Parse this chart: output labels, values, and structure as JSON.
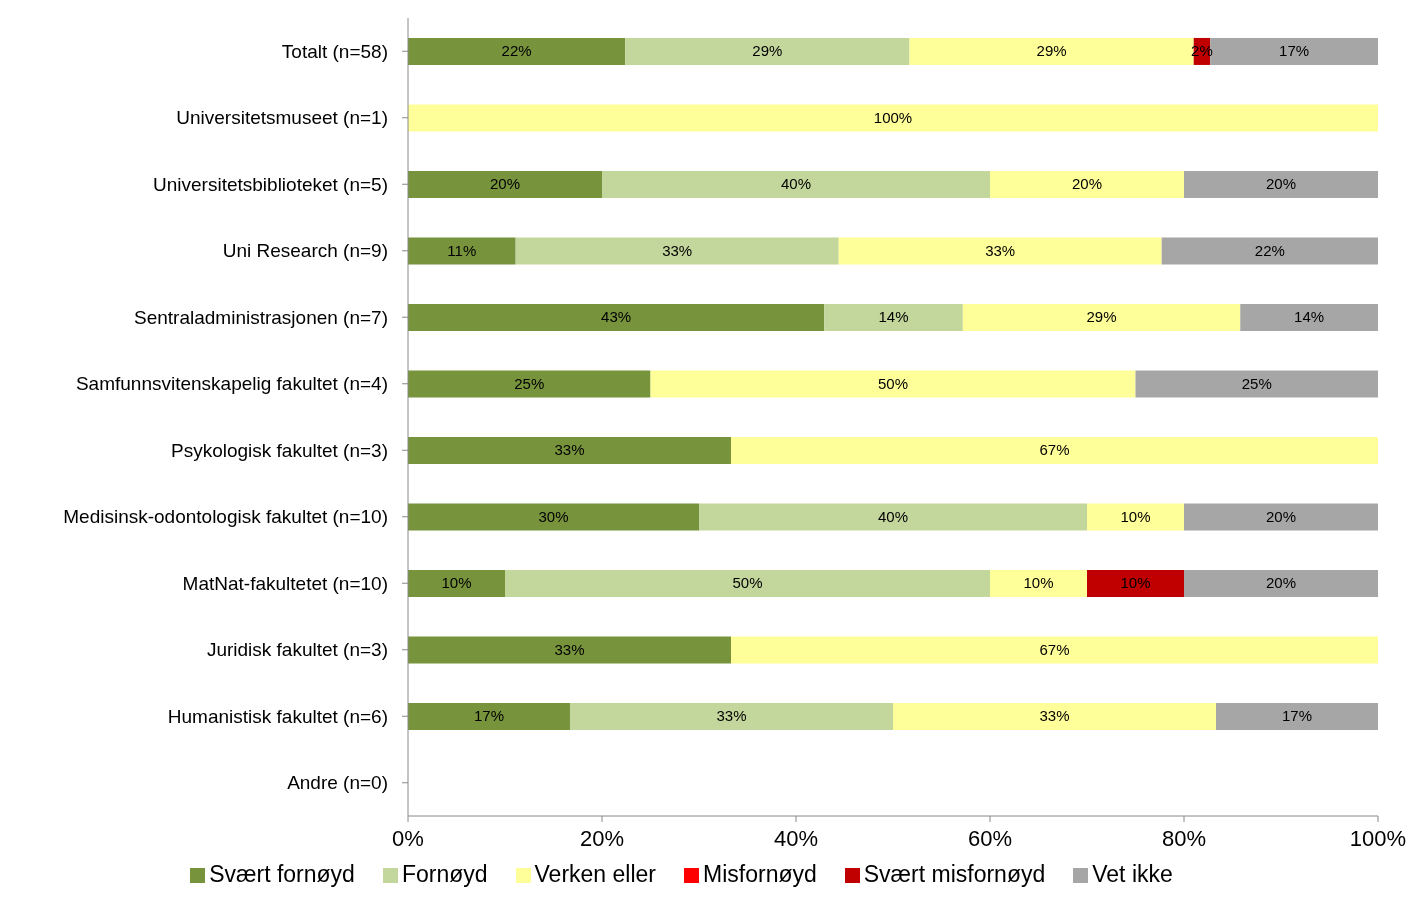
{
  "chart_data": {
    "type": "bar",
    "orientation": "horizontal",
    "stacked": true,
    "categories": [
      "Totalt (n=58)",
      "Universitetsmuseet (n=1)",
      "Universitetsbiblioteket (n=5)",
      "Uni Research (n=9)",
      "Sentraladministrasjonen (n=7)",
      "Samfunnsvitenskapelig fakultet (n=4)",
      "Psykologisk fakultet (n=3)",
      "Medisinsk-odontologisk fakultet (n=10)",
      "MatNat-fakultetet (n=10)",
      "Juridisk fakultet (n=3)",
      "Humanistisk fakultet (n=6)",
      "Andre (n=0)"
    ],
    "series": [
      {
        "name": "Svært fornøyd",
        "color": "#77933c",
        "values": [
          22.4,
          null,
          20,
          11.1,
          42.9,
          25,
          33.3,
          30,
          10,
          33.3,
          16.7,
          null
        ],
        "value_labels": [
          "22%",
          null,
          "20%",
          "11%",
          "43%",
          "25%",
          "33%",
          "30%",
          "10%",
          "33%",
          "17%",
          null
        ]
      },
      {
        "name": "Fornøyd",
        "color": "#c3d69b",
        "values": [
          29.3,
          null,
          40,
          33.3,
          14.3,
          null,
          null,
          40,
          50,
          null,
          33.3,
          null
        ],
        "value_labels": [
          "29%",
          null,
          "40%",
          "33%",
          "14%",
          null,
          null,
          "40%",
          "50%",
          null,
          "33%",
          null
        ]
      },
      {
        "name": "Verken eller",
        "color": "#ffff99",
        "values": [
          29.3,
          100,
          20,
          33.3,
          28.6,
          50,
          66.7,
          10,
          10,
          66.7,
          33.3,
          null
        ],
        "value_labels": [
          "29%",
          "100%",
          "20%",
          "33%",
          "29%",
          "50%",
          "67%",
          "10%",
          "10%",
          "67%",
          "33%",
          null
        ]
      },
      {
        "name": "Misfornøyd",
        "color": "#ff0000",
        "values": [
          null,
          null,
          null,
          null,
          null,
          null,
          null,
          null,
          null,
          null,
          null,
          null
        ],
        "value_labels": [
          null,
          null,
          null,
          null,
          null,
          null,
          null,
          null,
          null,
          null,
          null,
          null
        ]
      },
      {
        "name": "Svært misfornøyd",
        "color": "#c00000",
        "values": [
          1.7,
          null,
          null,
          null,
          null,
          null,
          null,
          null,
          10,
          null,
          null,
          null
        ],
        "value_labels": [
          "2%",
          null,
          null,
          null,
          null,
          null,
          null,
          null,
          "10%",
          null,
          null,
          null
        ]
      },
      {
        "name": "Vet ikke",
        "color": "#a6a6a6",
        "values": [
          17.3,
          null,
          20,
          22.3,
          14.2,
          25,
          null,
          20,
          20,
          null,
          16.7,
          null
        ],
        "value_labels": [
          "17%",
          null,
          "20%",
          "22%",
          "14%",
          "25%",
          null,
          "20%",
          "20%",
          null,
          "17%",
          null
        ]
      }
    ],
    "xlim": [
      0,
      100
    ],
    "xticks": [
      {
        "value": 0,
        "label": "0%"
      },
      {
        "value": 20,
        "label": "20%"
      },
      {
        "value": 40,
        "label": "40%"
      },
      {
        "value": 60,
        "label": "60%"
      },
      {
        "value": 80,
        "label": "80%"
      },
      {
        "value": 100,
        "label": "100%"
      }
    ],
    "grid": false,
    "legend": "bottom"
  }
}
